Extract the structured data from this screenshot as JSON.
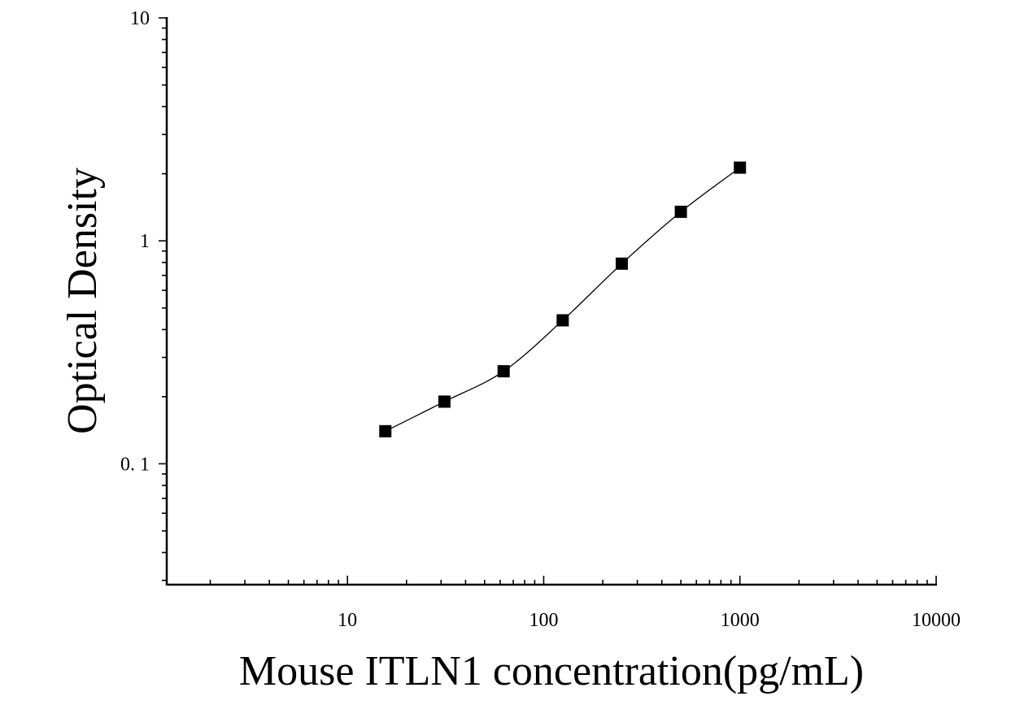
{
  "chart_data": {
    "type": "scatter",
    "xlabel": "Mouse ITLN1 concentration(pg/mL)",
    "ylabel": "Optical Density",
    "xscale": "log",
    "yscale": "log",
    "xlim": [
      1.2,
      10000
    ],
    "ylim": [
      0.0287,
      10
    ],
    "x_ticks": [
      {
        "value": 10,
        "label": "10"
      },
      {
        "value": 100,
        "label": "100"
      },
      {
        "value": 1000,
        "label": "1000"
      },
      {
        "value": 10000,
        "label": "10000"
      }
    ],
    "y_ticks": [
      {
        "value": 10,
        "label": "10"
      },
      {
        "value": 1,
        "label": "1"
      },
      {
        "value": 0.1,
        "label": "0. 1"
      }
    ],
    "grid": false,
    "legend": "none",
    "series": [
      {
        "marker": "square",
        "color": "#000000",
        "points": [
          {
            "x": 15.6,
            "y": 0.14
          },
          {
            "x": 31.2,
            "y": 0.19
          },
          {
            "x": 62.5,
            "y": 0.26
          },
          {
            "x": 125,
            "y": 0.44
          },
          {
            "x": 250,
            "y": 0.79
          },
          {
            "x": 500,
            "y": 1.35
          },
          {
            "x": 1000,
            "y": 2.13
          }
        ],
        "fit_curve": true
      }
    ]
  }
}
